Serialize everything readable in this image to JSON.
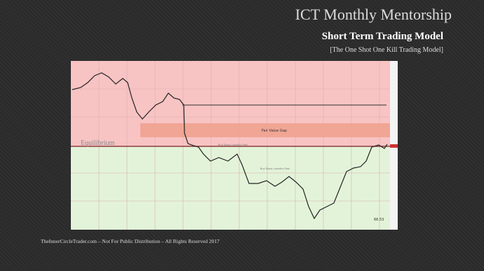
{
  "header": {
    "title": "ICT Monthly Mentorship",
    "subtitle": "Short Term Trading Model",
    "tagline": "[The One Shot One Kill Trading Model]"
  },
  "chart": {
    "fvg_label": "Fair Value Gap",
    "equilibrium_label": "Equilibrium",
    "liquidity_label_1": "Buy Stops Liquidity Pool",
    "liquidity_label_2": "Buy Stops Liquidity Pool",
    "price_label": "66.53"
  },
  "footer": "TheInnerCircleTrader.com – Not For Public Distribution – All Rights Reserved 2017"
}
